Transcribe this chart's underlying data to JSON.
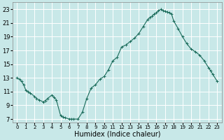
{
  "xlabel": "Humidex (Indice chaleur)",
  "background_color": "#c8e8e8",
  "grid_color": "#a8d8d8",
  "line_color": "#1a6b5a",
  "marker_color": "#1a6b5a",
  "xlim": [
    -0.5,
    23.5
  ],
  "ylim": [
    6.5,
    24.0
  ],
  "xticks": [
    0,
    1,
    2,
    3,
    4,
    5,
    6,
    7,
    8,
    9,
    10,
    11,
    12,
    13,
    14,
    15,
    16,
    17,
    18,
    19,
    20,
    21,
    22,
    23
  ],
  "yticks": [
    7,
    9,
    11,
    13,
    15,
    17,
    19,
    21,
    23
  ],
  "hours": [
    0,
    0.25,
    0.5,
    0.75,
    1,
    1.25,
    1.5,
    2,
    2.25,
    2.5,
    3,
    3.25,
    3.5,
    4,
    4.25,
    4.5,
    5,
    5.25,
    5.5,
    6,
    6.25,
    6.5,
    7,
    7.5,
    8,
    8.5,
    9,
    9.5,
    10,
    10.5,
    11,
    11.5,
    12,
    12.5,
    13,
    13.5,
    14,
    14.5,
    15,
    15.25,
    15.5,
    15.75,
    16,
    16.25,
    16.5,
    16.75,
    17,
    17.25,
    17.5,
    17.75,
    18,
    18.5,
    19,
    19.5,
    20,
    20.5,
    21,
    21.5,
    22,
    22.25,
    22.5,
    23
  ],
  "values": [
    13.0,
    12.8,
    12.5,
    12.0,
    11.2,
    11.0,
    10.8,
    10.3,
    10.0,
    9.8,
    9.5,
    9.7,
    10.0,
    10.5,
    10.2,
    9.8,
    7.5,
    7.3,
    7.2,
    7.0,
    7.0,
    7.0,
    7.0,
    8.0,
    10.0,
    11.5,
    12.0,
    12.8,
    13.2,
    14.2,
    15.5,
    16.0,
    17.5,
    17.8,
    18.3,
    18.8,
    19.5,
    20.5,
    21.5,
    21.8,
    22.0,
    22.3,
    22.5,
    22.8,
    23.0,
    22.8,
    22.7,
    22.6,
    22.5,
    22.3,
    21.3,
    20.2,
    19.0,
    18.0,
    17.2,
    16.8,
    16.3,
    15.5,
    14.5,
    14.0,
    13.5,
    12.5
  ],
  "xlabel_fontsize": 7,
  "xtick_fontsize": 5,
  "ytick_fontsize": 6
}
